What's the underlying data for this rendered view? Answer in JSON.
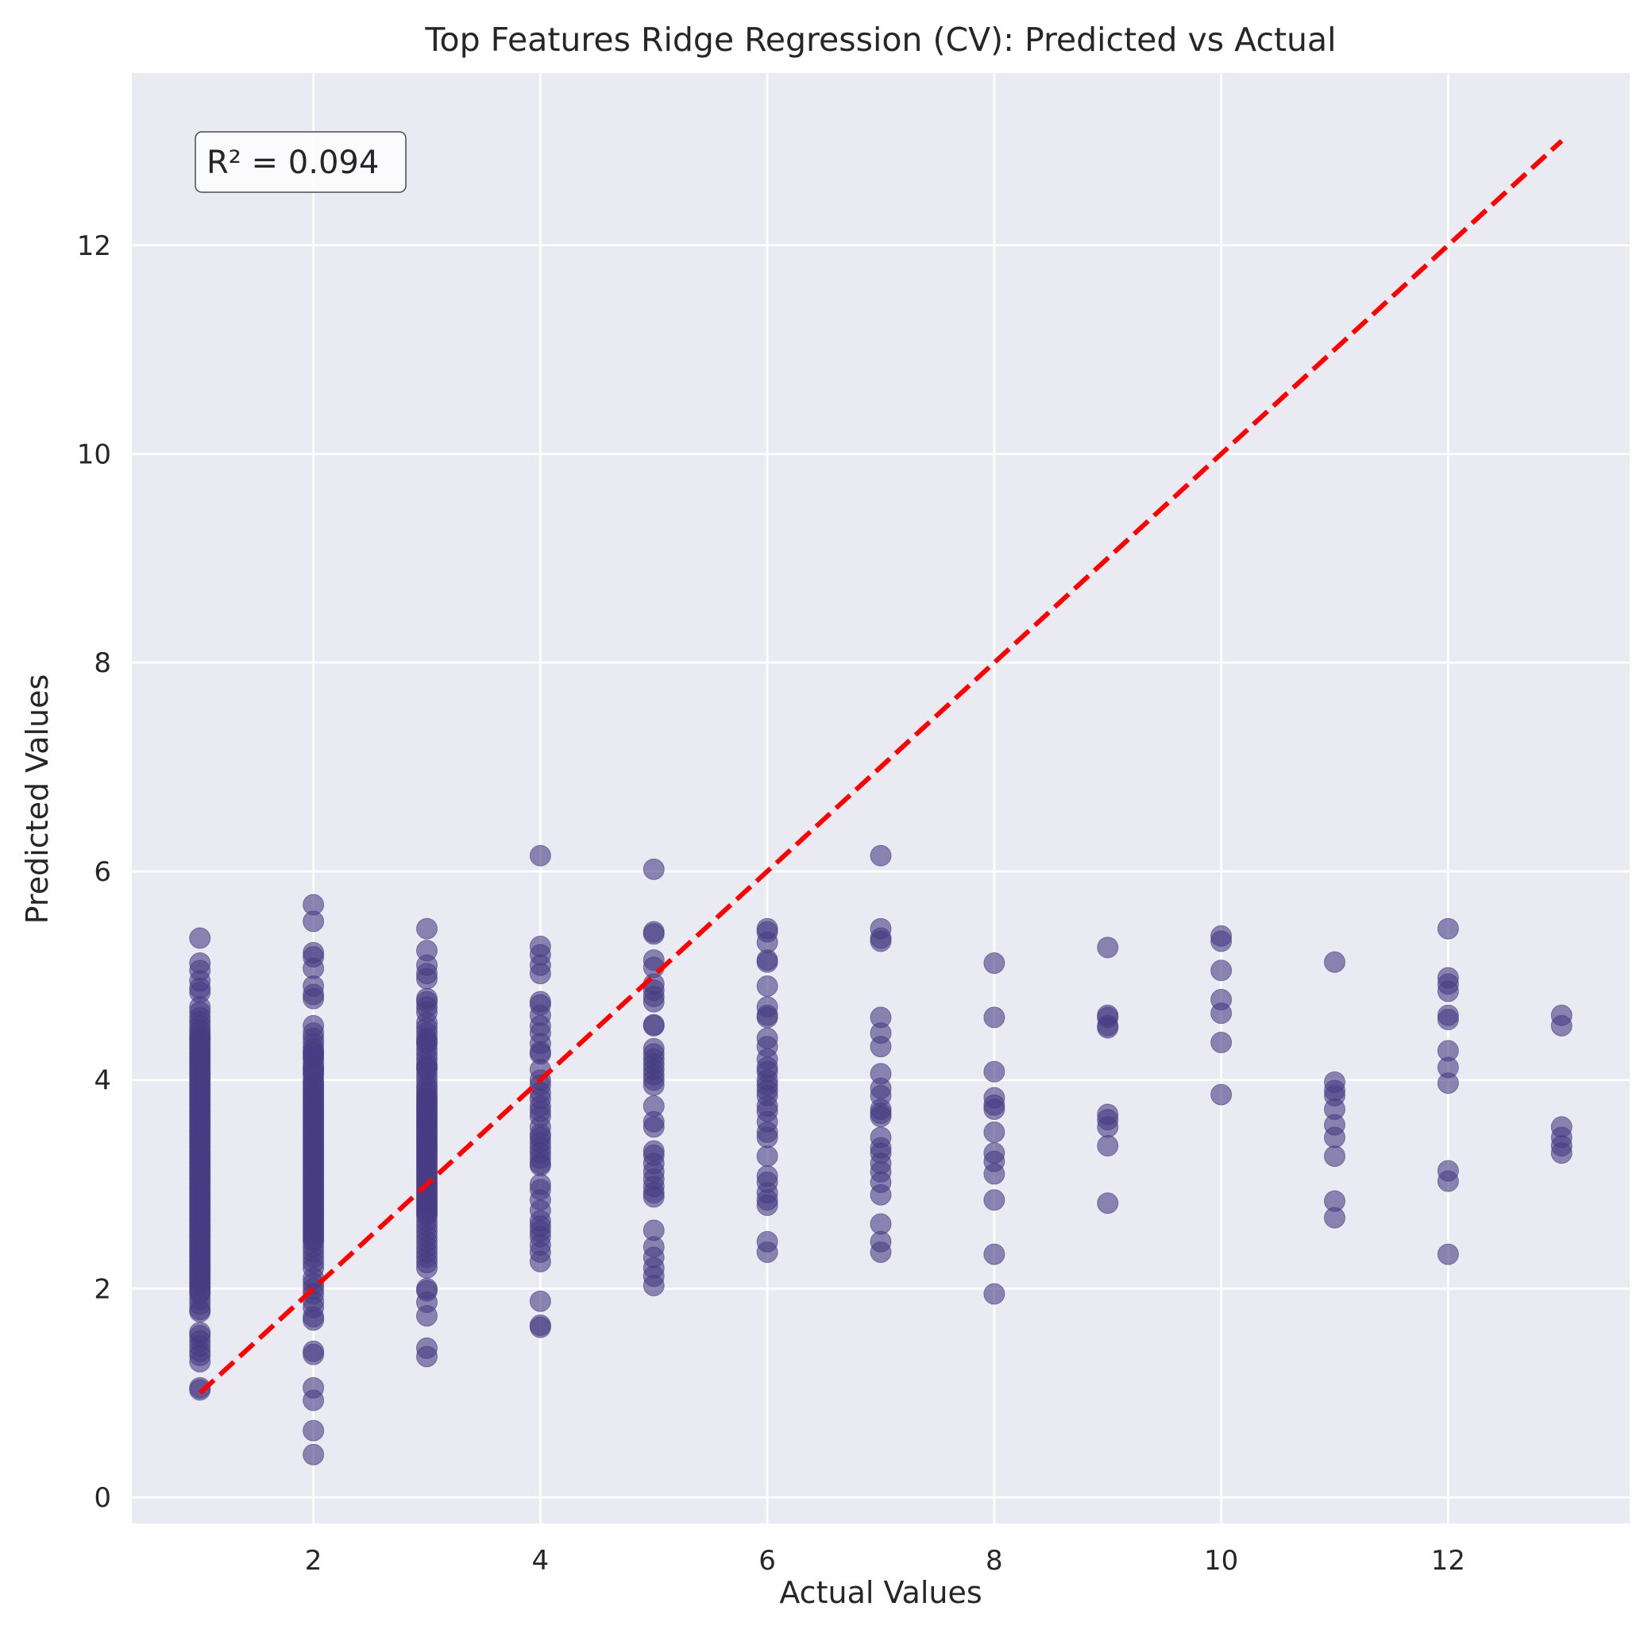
{
  "chart_data": {
    "type": "scatter",
    "title": "Top Features Ridge Regression (CV): Predicted vs Actual",
    "xlabel": "Actual Values",
    "ylabel": "Predicted Values",
    "xlim": [
      0.4,
      13.6
    ],
    "ylim": [
      -0.25,
      13.65
    ],
    "xticks": [
      2,
      4,
      6,
      8,
      10,
      12
    ],
    "yticks": [
      0,
      2,
      4,
      6,
      8,
      10,
      12
    ],
    "grid": true,
    "annotation": "R² = 0.094",
    "point_color": "#483c84",
    "point_alpha": 0.6,
    "reference_line": {
      "from": [
        1,
        1
      ],
      "to": [
        13,
        13
      ],
      "color": "#ff0000",
      "style": "dashed"
    },
    "series": [
      {
        "x": 1,
        "y": [
          5.36,
          5.12,
          5.05,
          4.95,
          4.88,
          4.84,
          4.7,
          4.65,
          4.6,
          4.56,
          4.52,
          4.48,
          4.45,
          4.42,
          4.4,
          4.38,
          4.35,
          4.32,
          4.3,
          4.27,
          4.25,
          4.22,
          4.2,
          4.17,
          4.15,
          4.12,
          4.1,
          4.07,
          4.05,
          4.02,
          4.0,
          3.97,
          3.95,
          3.92,
          3.9,
          3.87,
          3.85,
          3.82,
          3.8,
          3.77,
          3.75,
          3.72,
          3.7,
          3.67,
          3.65,
          3.62,
          3.6,
          3.57,
          3.55,
          3.52,
          3.5,
          3.47,
          3.45,
          3.42,
          3.4,
          3.37,
          3.35,
          3.32,
          3.3,
          3.27,
          3.25,
          3.22,
          3.2,
          3.17,
          3.15,
          3.12,
          3.1,
          3.07,
          3.05,
          3.02,
          3.0,
          2.97,
          2.95,
          2.92,
          2.9,
          2.87,
          2.85,
          2.82,
          2.8,
          2.77,
          2.75,
          2.72,
          2.7,
          2.67,
          2.65,
          2.62,
          2.6,
          2.57,
          2.55,
          2.52,
          2.5,
          2.47,
          2.45,
          2.42,
          2.4,
          2.37,
          2.35,
          2.32,
          2.3,
          2.27,
          2.25,
          2.22,
          2.2,
          2.17,
          2.15,
          2.12,
          2.1,
          2.07,
          2.05,
          2.02,
          2.0,
          1.97,
          1.95,
          1.9,
          1.85,
          1.8,
          1.78,
          1.58,
          1.55,
          1.5,
          1.45,
          1.4,
          1.36,
          1.3,
          1.05,
          1.03
        ]
      },
      {
        "x": 2,
        "y": [
          5.68,
          5.52,
          5.22,
          5.18,
          5.07,
          4.9,
          4.82,
          4.78,
          4.52,
          4.45,
          4.4,
          4.35,
          4.3,
          4.27,
          4.25,
          4.22,
          4.2,
          4.15,
          4.12,
          4.1,
          4.07,
          4.05,
          4.0,
          3.97,
          3.95,
          3.92,
          3.9,
          3.87,
          3.85,
          3.82,
          3.8,
          3.77,
          3.75,
          3.72,
          3.7,
          3.67,
          3.65,
          3.62,
          3.6,
          3.57,
          3.55,
          3.52,
          3.5,
          3.47,
          3.45,
          3.42,
          3.4,
          3.37,
          3.35,
          3.32,
          3.3,
          3.27,
          3.25,
          3.22,
          3.2,
          3.17,
          3.15,
          3.12,
          3.1,
          3.07,
          3.05,
          3.02,
          3.0,
          2.97,
          2.95,
          2.92,
          2.9,
          2.87,
          2.85,
          2.82,
          2.8,
          2.77,
          2.75,
          2.72,
          2.7,
          2.67,
          2.65,
          2.62,
          2.6,
          2.57,
          2.55,
          2.52,
          2.5,
          2.47,
          2.45,
          2.4,
          2.35,
          2.3,
          2.25,
          2.2,
          2.1,
          2.05,
          2.0,
          1.95,
          1.88,
          1.82,
          1.73,
          1.7,
          1.4,
          1.37,
          1.05,
          0.93,
          0.64,
          0.41
        ]
      },
      {
        "x": 3,
        "y": [
          5.45,
          5.24,
          5.1,
          5.02,
          4.97,
          4.78,
          4.75,
          4.7,
          4.65,
          4.55,
          4.5,
          4.45,
          4.4,
          4.37,
          4.35,
          4.3,
          4.25,
          4.2,
          4.15,
          4.12,
          4.1,
          4.05,
          4.0,
          3.95,
          3.92,
          3.88,
          3.85,
          3.82,
          3.8,
          3.77,
          3.75,
          3.72,
          3.7,
          3.67,
          3.65,
          3.62,
          3.6,
          3.57,
          3.55,
          3.52,
          3.5,
          3.47,
          3.45,
          3.42,
          3.4,
          3.37,
          3.35,
          3.32,
          3.3,
          3.27,
          3.25,
          3.22,
          3.2,
          3.17,
          3.15,
          3.12,
          3.1,
          3.07,
          3.05,
          3.02,
          3.0,
          2.97,
          2.95,
          2.92,
          2.9,
          2.87,
          2.85,
          2.82,
          2.8,
          2.77,
          2.75,
          2.72,
          2.7,
          2.65,
          2.6,
          2.55,
          2.5,
          2.45,
          2.4,
          2.35,
          2.3,
          2.25,
          2.2,
          2.0,
          1.98,
          1.87,
          1.74,
          1.43,
          1.35
        ]
      },
      {
        "x": 4,
        "y": [
          6.15,
          5.28,
          5.2,
          5.1,
          5.02,
          4.75,
          4.72,
          4.62,
          4.52,
          4.45,
          4.35,
          4.27,
          4.25,
          4.1,
          4.0,
          3.95,
          3.88,
          3.82,
          3.75,
          3.7,
          3.65,
          3.55,
          3.48,
          3.45,
          3.4,
          3.35,
          3.3,
          3.25,
          3.2,
          3.18,
          3.0,
          2.95,
          2.85,
          2.75,
          2.65,
          2.6,
          2.55,
          2.5,
          2.42,
          2.35,
          2.26,
          1.88,
          1.65,
          1.63
        ]
      },
      {
        "x": 5,
        "y": [
          6.02,
          5.42,
          5.4,
          5.15,
          5.08,
          4.92,
          4.86,
          4.8,
          4.75,
          4.53,
          4.52,
          4.3,
          4.25,
          4.2,
          4.15,
          4.1,
          4.05,
          4.0,
          3.95,
          3.75,
          3.6,
          3.55,
          3.32,
          3.28,
          3.2,
          3.12,
          3.05,
          2.98,
          2.92,
          2.88,
          2.56,
          2.4,
          2.3,
          2.2,
          2.12,
          2.03
        ]
      },
      {
        "x": 6,
        "y": [
          5.45,
          5.42,
          5.32,
          5.15,
          5.13,
          4.9,
          4.7,
          4.62,
          4.6,
          4.4,
          4.32,
          4.2,
          4.12,
          4.08,
          4.0,
          3.95,
          3.9,
          3.85,
          3.75,
          3.7,
          3.6,
          3.5,
          3.45,
          3.27,
          3.08,
          3.02,
          2.92,
          2.85,
          2.8,
          2.45,
          2.35
        ]
      },
      {
        "x": 7,
        "y": [
          6.15,
          5.45,
          5.36,
          5.33,
          4.6,
          4.45,
          4.32,
          4.06,
          3.92,
          3.85,
          3.72,
          3.68,
          3.65,
          3.45,
          3.35,
          3.3,
          3.2,
          3.12,
          3.02,
          2.9,
          2.62,
          2.45,
          2.35
        ]
      },
      {
        "x": 8,
        "y": [
          5.12,
          4.6,
          4.08,
          3.83,
          3.76,
          3.72,
          3.5,
          3.3,
          3.22,
          3.1,
          2.85,
          2.33,
          1.95
        ]
      },
      {
        "x": 9,
        "y": [
          5.27,
          4.62,
          4.6,
          4.52,
          4.5,
          3.67,
          3.62,
          3.55,
          3.37,
          2.82
        ]
      },
      {
        "x": 10,
        "y": [
          5.38,
          5.33,
          5.05,
          4.77,
          4.64,
          4.36,
          3.86
        ]
      },
      {
        "x": 11,
        "y": [
          5.13,
          3.98,
          3.9,
          3.85,
          3.72,
          3.57,
          3.45,
          3.27,
          2.84,
          2.68
        ]
      },
      {
        "x": 12,
        "y": [
          5.45,
          4.98,
          4.92,
          4.85,
          4.62,
          4.58,
          4.28,
          4.12,
          3.97,
          3.13,
          3.03,
          2.33
        ]
      },
      {
        "x": 13,
        "y": [
          4.62,
          4.52,
          3.55,
          3.45,
          3.37,
          3.3
        ]
      }
    ]
  }
}
